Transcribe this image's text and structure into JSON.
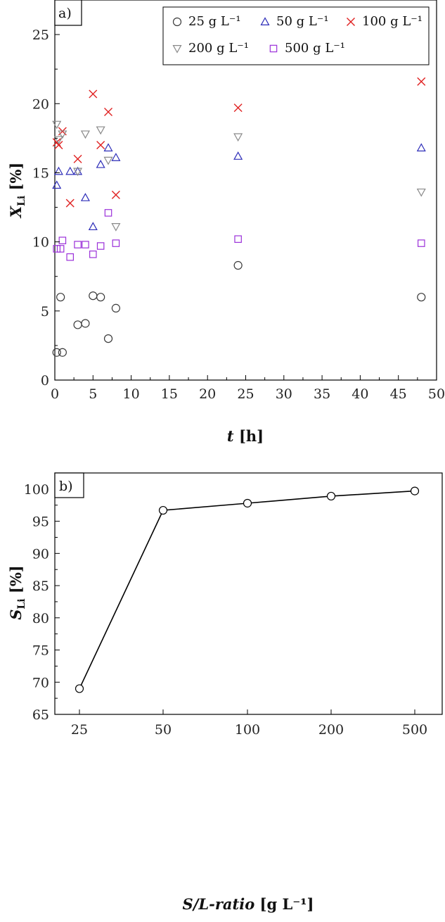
{
  "chart_data": [
    {
      "panel_label": "a)",
      "type": "scatter",
      "xlabel": {
        "main": "t",
        "unit": "[h]"
      },
      "ylabel": {
        "main": "X",
        "sub": "Li",
        "unit": "[%]"
      },
      "xlim": [
        0,
        50
      ],
      "ylim": [
        0,
        27.5
      ],
      "xticks": [
        0,
        5,
        10,
        15,
        20,
        25,
        30,
        35,
        40,
        45,
        50
      ],
      "yticks": [
        0,
        5,
        10,
        15,
        20,
        25
      ],
      "grid": false,
      "legend_position": "top-right",
      "series": [
        {
          "name": "25 g L⁻¹",
          "marker": "circle",
          "color": "#3a3a3a",
          "points": [
            [
              0.25,
              2.0
            ],
            [
              1,
              2.0
            ],
            [
              0.75,
              6.0
            ],
            [
              3,
              4.0
            ],
            [
              4,
              4.1
            ],
            [
              5,
              6.1
            ],
            [
              6,
              6.0
            ],
            [
              7,
              3.0
            ],
            [
              8,
              5.2
            ],
            [
              24,
              8.3
            ],
            [
              48,
              6.0
            ]
          ]
        },
        {
          "name": "50 g L⁻¹",
          "marker": "triangle-up",
          "color": "#2d2db8",
          "points": [
            [
              0.25,
              14.1
            ],
            [
              0.5,
              15.1
            ],
            [
              2,
              15.1
            ],
            [
              3,
              15.1
            ],
            [
              4,
              13.2
            ],
            [
              5,
              11.1
            ],
            [
              6,
              15.6
            ],
            [
              7,
              16.8
            ],
            [
              8,
              16.1
            ],
            [
              24,
              16.2
            ],
            [
              48,
              16.8
            ]
          ]
        },
        {
          "name": "100 g L⁻¹",
          "marker": "cross",
          "color": "#e02222",
          "points": [
            [
              0.25,
              17.2
            ],
            [
              0.5,
              17.0
            ],
            [
              1,
              18.0
            ],
            [
              2,
              12.8
            ],
            [
              3,
              16.0
            ],
            [
              5,
              20.7
            ],
            [
              6,
              17.0
            ],
            [
              7,
              19.4
            ],
            [
              8,
              13.4
            ],
            [
              24,
              19.7
            ],
            [
              48,
              21.6
            ]
          ]
        },
        {
          "name": "200 g L⁻¹",
          "marker": "triangle-down",
          "color": "#8a8a8a",
          "points": [
            [
              0.25,
              18.5
            ],
            [
              0.5,
              17.4
            ],
            [
              1,
              17.8
            ],
            [
              3,
              15.1
            ],
            [
              4,
              17.8
            ],
            [
              6,
              18.1
            ],
            [
              7,
              15.9
            ],
            [
              8,
              11.1
            ],
            [
              24,
              17.6
            ],
            [
              48,
              13.6
            ]
          ]
        },
        {
          "name": "500 g L⁻¹",
          "marker": "square",
          "color": "#9b30d9",
          "points": [
            [
              0.25,
              9.5
            ],
            [
              0.75,
              9.5
            ],
            [
              1,
              10.1
            ],
            [
              2,
              8.9
            ],
            [
              3,
              9.8
            ],
            [
              4,
              9.8
            ],
            [
              5,
              9.1
            ],
            [
              6,
              9.7
            ],
            [
              7,
              12.1
            ],
            [
              8,
              9.9
            ],
            [
              24,
              10.2
            ],
            [
              48,
              9.9
            ]
          ]
        }
      ]
    },
    {
      "panel_label": "b)",
      "type": "line",
      "xlabel": {
        "main": "S/L-ratio",
        "unit": "[g L⁻¹]"
      },
      "ylabel": {
        "main": "S",
        "sub": "Li",
        "unit": "[%]"
      },
      "categories": [
        "25",
        "50",
        "100",
        "200",
        "500"
      ],
      "ylim": [
        65,
        102.5
      ],
      "yticks": [
        65,
        70,
        75,
        80,
        85,
        90,
        95,
        100
      ],
      "grid": false,
      "series": [
        {
          "marker": "circle-open",
          "color": "#000000",
          "values": [
            69.0,
            96.7,
            97.8,
            98.9,
            99.7
          ]
        }
      ]
    }
  ]
}
